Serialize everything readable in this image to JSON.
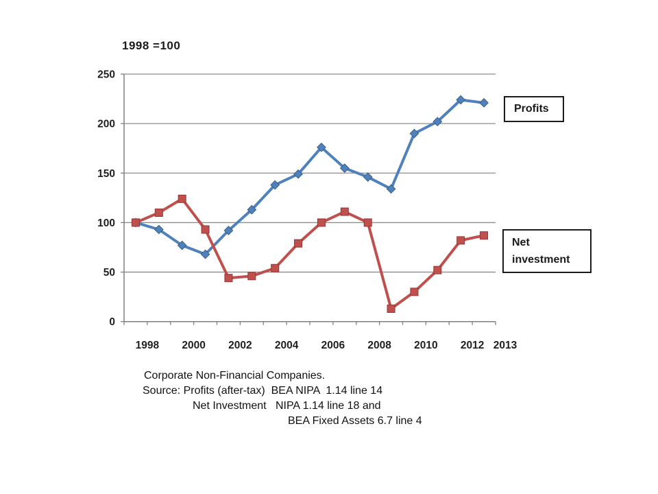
{
  "title": "1998 =100",
  "chart_data": {
    "type": "line",
    "x": [
      1998,
      1999,
      2000,
      2001,
      2002,
      2003,
      2004,
      2005,
      2006,
      2007,
      2008,
      2009,
      2010,
      2011,
      2012,
      2013
    ],
    "x_tick_labels": [
      "1998",
      "2000",
      "2002",
      "2004",
      "2006",
      "2008",
      "2010",
      "2012",
      "2013"
    ],
    "y_ticks": [
      0,
      50,
      100,
      150,
      200,
      250
    ],
    "ylim": [
      0,
      250
    ],
    "grid": "horizontal",
    "legend_position": "right, boxed labels next to each line",
    "series": [
      {
        "name": "Profits",
        "color": "#4F81BD",
        "marker": "diamond",
        "values": [
          100,
          93,
          77,
          68,
          92,
          113,
          138,
          149,
          176,
          155,
          146,
          134,
          190,
          202,
          224,
          221
        ]
      },
      {
        "name": "Net investment",
        "color": "#C0504D",
        "marker": "square",
        "values": [
          100,
          110,
          124,
          93,
          44,
          46,
          54,
          79,
          100,
          111,
          100,
          13,
          30,
          52,
          82,
          87
        ]
      }
    ]
  },
  "legend": {
    "profits_label": "Profits",
    "net_investment_label": "Net investment"
  },
  "footnote": {
    "lines": [
      "Corporate Non-Financial Companies.",
      "Source: Profits (after-tax)  BEA NIPA  1.14 line 14",
      "Net Investment   NIPA 1.14 line 18 and",
      "BEA Fixed Assets 6.7 line 4"
    ]
  },
  "colors": {
    "profits": "#4F81BD",
    "profits_edge": "#3A6186",
    "net_investment": "#C0504D",
    "net_investment_edge": "#943634",
    "gridline": "#8C8C8C",
    "axis": "#7F7F7F",
    "tick_text": "#1F1F1F"
  }
}
